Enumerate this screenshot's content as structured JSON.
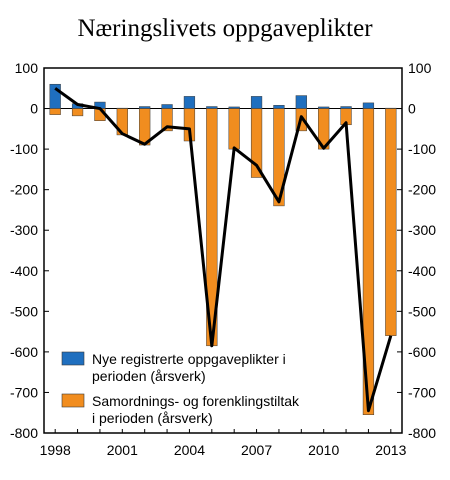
{
  "chart_data": {
    "type": "bar",
    "title": "Næringslivets oppgaveplikter",
    "xlabel": "",
    "ylabel": "",
    "ylim": [
      -800,
      100
    ],
    "y_ticks": [
      100,
      0,
      -100,
      -200,
      -300,
      -400,
      -500,
      -600,
      -700,
      -800
    ],
    "y_ticks_right": true,
    "x_tick_labels": [
      "1998",
      "2001",
      "2004",
      "2007",
      "2010",
      "2013"
    ],
    "grid": false,
    "legend_placement": "bottom-left",
    "categories": [
      "1998",
      "1999",
      "2000",
      "2001",
      "2002",
      "2003",
      "2004",
      "2005",
      "2006",
      "2007",
      "2008",
      "2009",
      "2010",
      "2011",
      "2012",
      "2013"
    ],
    "series": [
      {
        "name": "Nye registrerte oppgaveplikter i perioden (årsverk)",
        "kind": "bar",
        "color": "#1f6fbf",
        "values": [
          60,
          12,
          16,
          1,
          5,
          10,
          30,
          5,
          4,
          30,
          8,
          32,
          4,
          5,
          14,
          1
        ]
      },
      {
        "name": "Samordnings- og forenklingstiltak i perioden (årsverk)",
        "kind": "bar",
        "color": "#f18d1f",
        "values": [
          -15,
          -18,
          -30,
          -65,
          -90,
          -55,
          -80,
          -585,
          -100,
          -170,
          -240,
          -55,
          -100,
          -40,
          -755,
          -560
        ]
      },
      {
        "name": "",
        "kind": "line",
        "color": "#000000",
        "values": [
          50,
          10,
          0,
          -62,
          -88,
          -45,
          -50,
          -585,
          -97,
          -140,
          -230,
          -20,
          -98,
          -35,
          -745,
          -560
        ]
      }
    ]
  }
}
